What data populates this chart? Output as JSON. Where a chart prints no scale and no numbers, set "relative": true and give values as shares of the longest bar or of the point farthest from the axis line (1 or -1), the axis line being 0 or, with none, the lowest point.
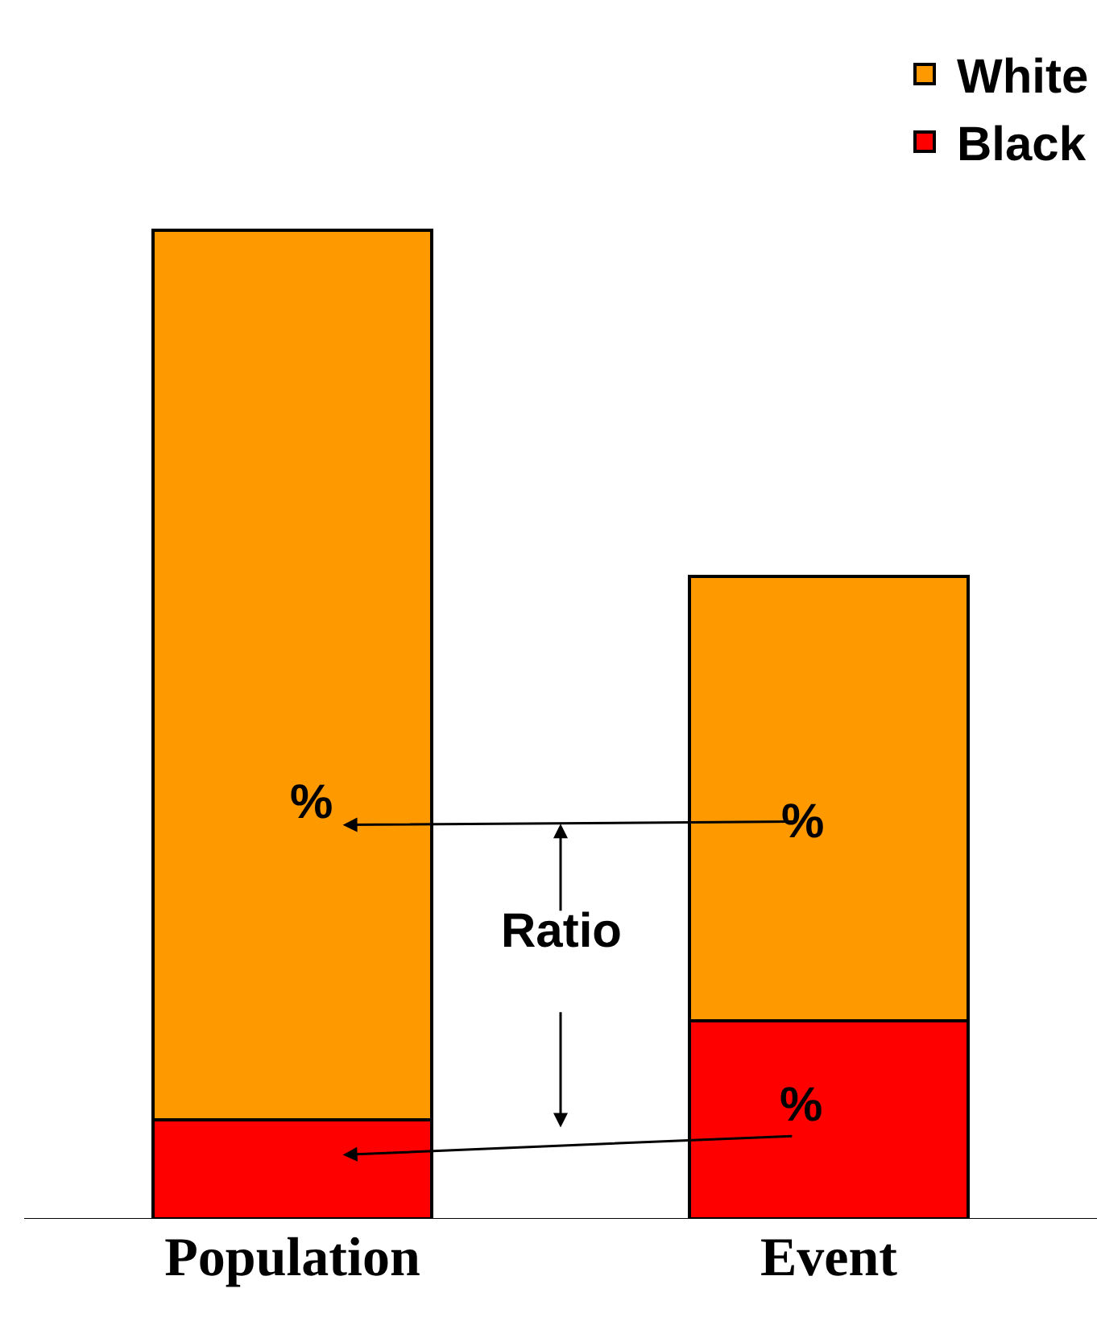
{
  "chart_data": {
    "type": "bar",
    "relative": true,
    "stacked": true,
    "categories": [
      "Population",
      "Event"
    ],
    "legend": "top right",
    "series": [
      {
        "name": "Black",
        "color": "#ff0000",
        "values": [
          0.1,
          0.2
        ]
      },
      {
        "name": "White",
        "color": "#ff9900",
        "values": [
          0.9,
          0.45
        ]
      }
    ],
    "annotations": [
      "%",
      "%",
      "%",
      "Ratio"
    ]
  }
}
